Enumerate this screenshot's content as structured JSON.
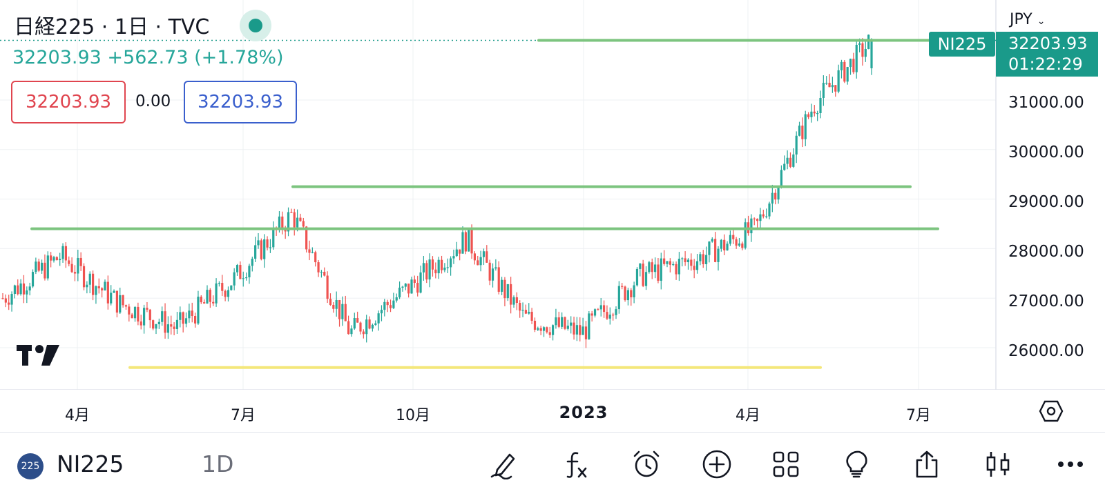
{
  "header": {
    "title": "日経225 · 1日 · TVC",
    "price_line": "32203.93  +562.73 (+1.78%)",
    "bid": "32203.93",
    "spread": "0.00",
    "ask": "32203.93"
  },
  "price_axis": {
    "currency": "JPY",
    "labels": [
      "31000.00",
      "30000.00",
      "29000.00",
      "28000.00",
      "27000.00",
      "26000.00"
    ],
    "symbol_tag": "NI225",
    "last_price": "32203.93",
    "countdown": "01:22:29"
  },
  "time_axis": {
    "labels": [
      "4月",
      "7月",
      "10月",
      "2023",
      "4月",
      "7月"
    ]
  },
  "bottom_bar": {
    "symbol_badge": "225",
    "symbol": "NI225",
    "interval": "1D",
    "tools": [
      "draw-icon",
      "indicators-icon",
      "alert-icon",
      "add-icon",
      "layouts-icon",
      "ideas-icon",
      "share-icon",
      "chart-type-icon",
      "more-icon"
    ]
  },
  "colors": {
    "up": "#26a69a",
    "down": "#ef5350",
    "accent": "#1a9a8a",
    "resistance": "#7cc47f",
    "support": "#f4e77a"
  },
  "chart_data": {
    "type": "candlestick",
    "series_name": "NI225",
    "x": [
      "2022-03",
      "2022-04",
      "2022-05",
      "2022-06",
      "2022-07",
      "2022-08",
      "2022-09",
      "2022-10",
      "2022-11",
      "2022-12",
      "2023-01",
      "2023-02",
      "2023-03",
      "2023-04",
      "2023-05",
      "2023-06"
    ],
    "close_approx": [
      27000,
      27850,
      26900,
      26400,
      27400,
      28700,
      26300,
      27200,
      28200,
      26600,
      26300,
      27450,
      27800,
      28400,
      30900,
      32203.93
    ],
    "ylim": [
      25300,
      32800
    ],
    "last": 32203.93,
    "change": 562.73,
    "change_pct": 1.78,
    "horizontal_lines": [
      {
        "color": "green",
        "price": 32203.93
      },
      {
        "color": "green",
        "price": 29250
      },
      {
        "color": "green",
        "price": 28400
      },
      {
        "color": "yellow",
        "price": 25600
      }
    ]
  }
}
